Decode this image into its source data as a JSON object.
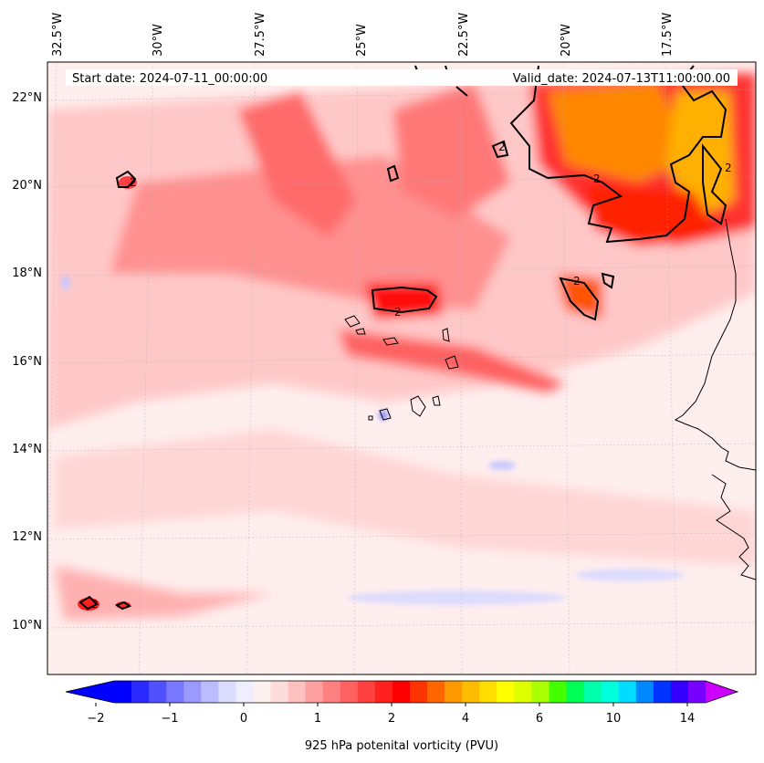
{
  "map": {
    "start_label": "Start date: 2024-07-11_00:00:00",
    "valid_label": "Valid_date: 2024-07-13T11:00:00.00",
    "lon_labels": [
      "32.5°W",
      "30°W",
      "27.5°W",
      "25°W",
      "22.5°W",
      "20°W",
      "17.5°W"
    ],
    "lat_labels": [
      "22°N",
      "20°N",
      "18°N",
      "16°N",
      "14°N",
      "12°N",
      "10°N"
    ],
    "contour_label": "2",
    "colorbar": {
      "title": "925 hPa potenital vorticity (PVU)",
      "tick_labels": [
        "−2",
        "−1",
        "0",
        "1",
        "2",
        "4",
        "6",
        "10",
        "14"
      ],
      "colors": [
        "#0000ff",
        "#2a2aff",
        "#5050ff",
        "#7777ff",
        "#9999ff",
        "#bbbbff",
        "#dcdcff",
        "#eeeeff",
        "#fff0f0",
        "#ffdcdc",
        "#ffc0c0",
        "#ffa0a0",
        "#ff8080",
        "#ff6060",
        "#ff4040",
        "#ff2020",
        "#ff0000",
        "#ff3300",
        "#ff6600",
        "#ff9900",
        "#ffbb00",
        "#ffdd00",
        "#ffff00",
        "#ddff00",
        "#aaff00",
        "#44ff00",
        "#00ff55",
        "#00ffaa",
        "#00ffdd",
        "#00ddff",
        "#0088ff",
        "#0033ff",
        "#3300ff",
        "#7700ff"
      ],
      "under_color": "#0000ff",
      "over_color": "#cc00ff"
    }
  }
}
